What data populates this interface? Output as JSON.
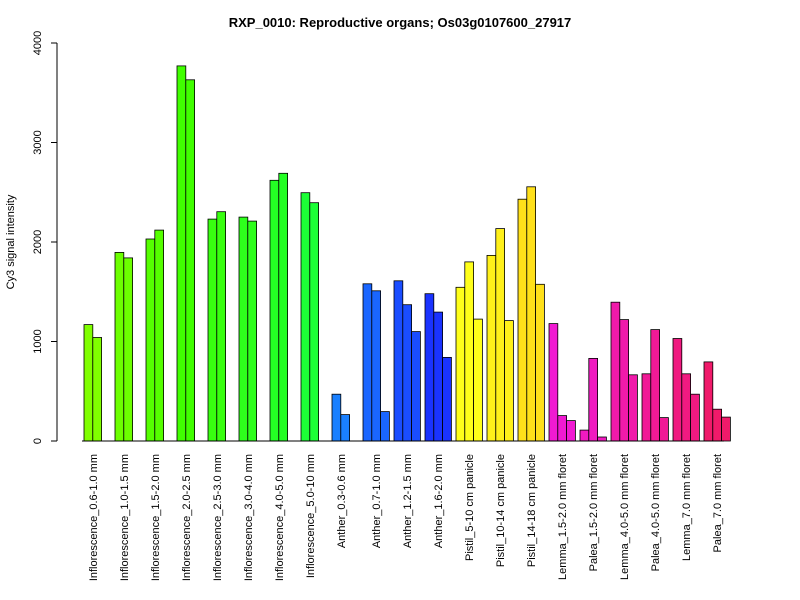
{
  "chart_data": {
    "type": "bar",
    "title": "RXP_0010: Reproductive organs; Os03g0107600_27917",
    "xlabel": "",
    "ylabel": "Cy3 signal intensity",
    "ylim": [
      0,
      4000
    ],
    "yticks": [
      0,
      1000,
      2000,
      3000,
      4000
    ],
    "grid": false,
    "groups": [
      {
        "label": "Inflorescence_0.6-1.0 mm",
        "color": "#80FF00",
        "values": [
          1170,
          1040
        ]
      },
      {
        "label": "Inflorescence_1.0-1.5 mm",
        "color": "#6CFF00",
        "values": [
          1895,
          1840
        ]
      },
      {
        "label": "Inflorescence_1.5-2.0 mm",
        "color": "#55FF00",
        "values": [
          2030,
          2120
        ]
      },
      {
        "label": "Inflorescence_2.0-2.5 mm",
        "color": "#40FF00",
        "values": [
          3770,
          3630
        ]
      },
      {
        "label": "Inflorescence_2.5-3.0 mm",
        "color": "#38FF10",
        "values": [
          2230,
          2305
        ]
      },
      {
        "label": "Inflorescence_3.0-4.0 mm",
        "color": "#2EFF1C",
        "values": [
          2250,
          2210
        ]
      },
      {
        "label": "Inflorescence_4.0-5.0 mm",
        "color": "#24FF24",
        "values": [
          2620,
          2690
        ]
      },
      {
        "label": "Inflorescence_5.0-10 mm",
        "color": "#1CFF36",
        "values": [
          2495,
          2395
        ]
      },
      {
        "label": "Anther_0.3-0.6 mm",
        "color": "#1A80FF",
        "values": [
          470,
          265
        ]
      },
      {
        "label": "Anther_0.7-1.0 mm",
        "color": "#1A66FF",
        "values": [
          1580,
          1510,
          295
        ]
      },
      {
        "label": "Anther_1.2-1.5 mm",
        "color": "#1A4DFF",
        "values": [
          1610,
          1370,
          1100
        ]
      },
      {
        "label": "Anther_1.6-2.0 mm",
        "color": "#1A33FF",
        "values": [
          1480,
          1295,
          840
        ]
      },
      {
        "label": "Pistil_5-10 cm panicle",
        "color": "#FFFF1A",
        "values": [
          1545,
          1800,
          1225
        ]
      },
      {
        "label": "Pistil_10-14 cm panicle",
        "color": "#FFF01A",
        "values": [
          1865,
          2135,
          1210
        ]
      },
      {
        "label": "Pistil_14-18 cm panicle",
        "color": "#FFE01A",
        "values": [
          2430,
          2555,
          1575
        ]
      },
      {
        "label": "Lemma_1.5-2.0 mm floret",
        "color": "#F01AD2",
        "values": [
          1180,
          255,
          205
        ]
      },
      {
        "label": "Palea_1.5-2.0 mm floret",
        "color": "#F01AC0",
        "values": [
          110,
          830,
          40
        ]
      },
      {
        "label": "Lemma_4.0-5.0 mm floret",
        "color": "#F01AAA",
        "values": [
          1395,
          1220,
          665
        ]
      },
      {
        "label": "Palea_4.0-5.0 mm floret",
        "color": "#F01A96",
        "values": [
          675,
          1120,
          235
        ]
      },
      {
        "label": "Lemma_7.0 mm floret",
        "color": "#F01A80",
        "values": [
          1030,
          675,
          470
        ]
      },
      {
        "label": "Palea_7.0 mm floret",
        "color": "#F01A6A",
        "values": [
          795,
          320,
          240
        ]
      }
    ]
  }
}
